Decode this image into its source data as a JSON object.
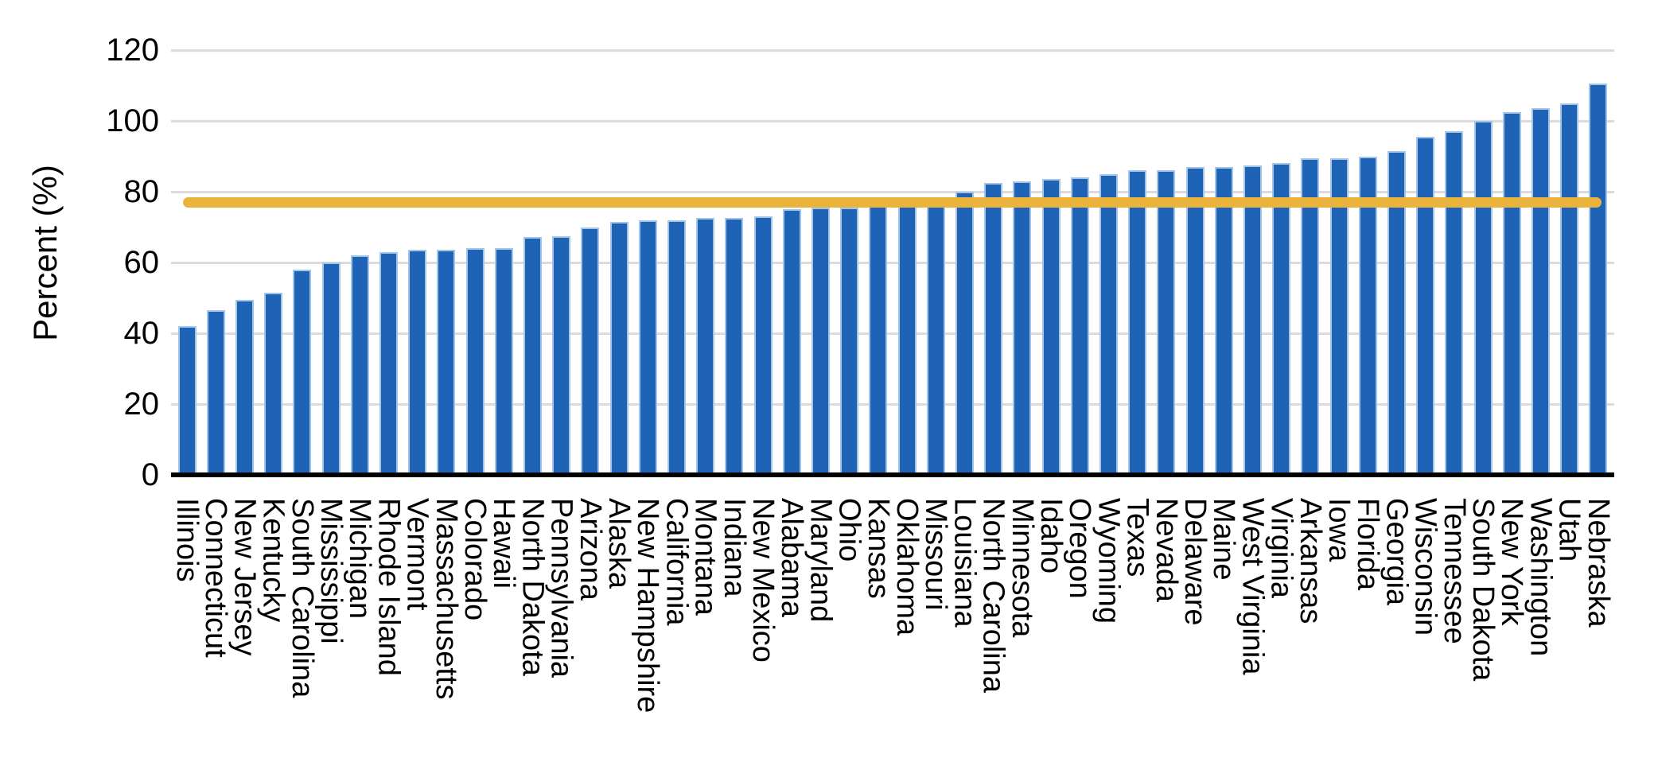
{
  "chart_data": {
    "type": "bar",
    "ylabel": "Percent (%)",
    "xlabel": "",
    "ylim": [
      0,
      120
    ],
    "yticks": [
      0,
      20,
      40,
      60,
      80,
      100,
      120
    ],
    "grid": "horizontal",
    "legend": "none",
    "bar_color": "#1E63B5",
    "bar_edge_color": "#A3C6E8",
    "gridline_color": "#DBDBDB",
    "axis_color": "#000000",
    "benchmark_line": {
      "value": 77,
      "color": "#E9B33C"
    },
    "categories": [
      "Illinois",
      "Connecticut",
      "New Jersey",
      "Kentucky",
      "South Carolina",
      "Mississippi",
      "Michigan",
      "Rhode Island",
      "Vermont",
      "Massachusetts",
      "Colorado",
      "Hawaii",
      "North Dakota",
      "Pennsylvania",
      "Arizona",
      "Alaska",
      "New Hampshire",
      "California",
      "Montana",
      "Indiana",
      "New Mexico",
      "Alabama",
      "Maryland",
      "Ohio",
      "Kansas",
      "Oklahoma",
      "Missouri",
      "Louisiana",
      "North Carolina",
      "Minnesota",
      "Idaho",
      "Oregon",
      "Wyoming",
      "Texas",
      "Nevada",
      "Delaware",
      "Maine",
      "West Virginia",
      "Virginia",
      "Arkansas",
      "Iowa",
      "Florida",
      "Georgia",
      "Wisconsin",
      "Tennessee",
      "South Dakota",
      "New York",
      "Washington",
      "Utah",
      "Nebraska"
    ],
    "values": [
      42,
      46.5,
      49.5,
      51.5,
      58,
      60,
      62,
      63,
      63.5,
      63.5,
      64,
      64,
      67.3,
      67.5,
      70,
      71.5,
      72,
      72,
      72.5,
      72.5,
      73,
      75,
      75.5,
      75.5,
      76,
      77.5,
      78.5,
      80,
      82.5,
      83,
      83.5,
      84,
      85,
      86,
      86,
      87,
      87,
      87.5,
      88,
      89.5,
      89.5,
      90,
      91.5,
      95.5,
      97,
      100,
      102.5,
      103.5,
      105,
      110.5
    ]
  }
}
